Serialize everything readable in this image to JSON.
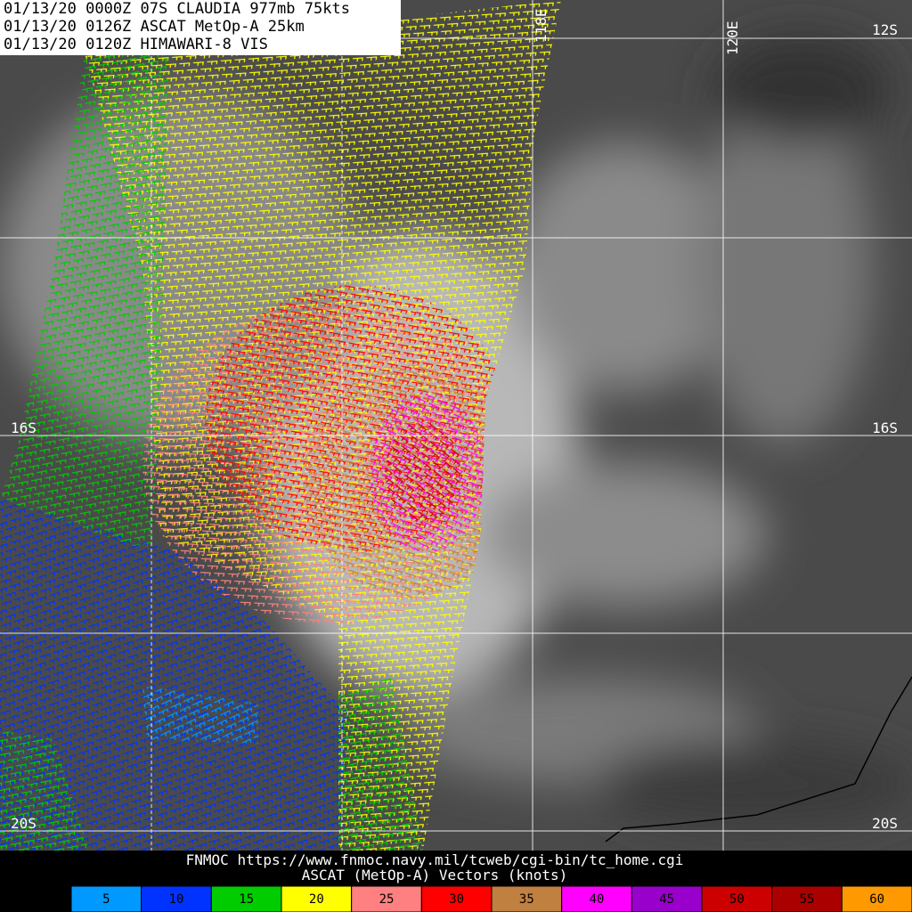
{
  "header": {
    "lines": [
      "01/13/20 0000Z  07S CLAUDIA 977mb 75kts",
      "01/13/20 0126Z  ASCAT MetOp-A 25km",
      "01/13/20 0120Z  HIMAWARI-8 VIS"
    ]
  },
  "grid_labels": {
    "lat_right": [
      "12S",
      "16S",
      "20S"
    ],
    "lat_left": [
      "16S",
      "20S"
    ],
    "lon": [
      "118E",
      "120E"
    ]
  },
  "footer": {
    "source": "FNMOC https://www.fnmoc.navy.mil/tcweb/cgi-bin/tc_home.cgi",
    "caption": "ASCAT (MetOp-A) Vectors (knots)"
  },
  "legend": {
    "items": [
      {
        "label": 5,
        "color": "#0099ff"
      },
      {
        "label": 10,
        "color": "#0033ff"
      },
      {
        "label": 15,
        "color": "#00cc00"
      },
      {
        "label": 20,
        "color": "#ffff00"
      },
      {
        "label": 25,
        "color": "#ff8080"
      },
      {
        "label": 30,
        "color": "#ff0000"
      },
      {
        "label": 35,
        "color": "#c08040"
      },
      {
        "label": 40,
        "color": "#ff00ff"
      },
      {
        "label": 45,
        "color": "#9900cc"
      },
      {
        "label": 50,
        "color": "#cc0000"
      },
      {
        "label": 55,
        "color": "#aa0000"
      },
      {
        "label": 60,
        "color": "#ff9900"
      }
    ]
  }
}
